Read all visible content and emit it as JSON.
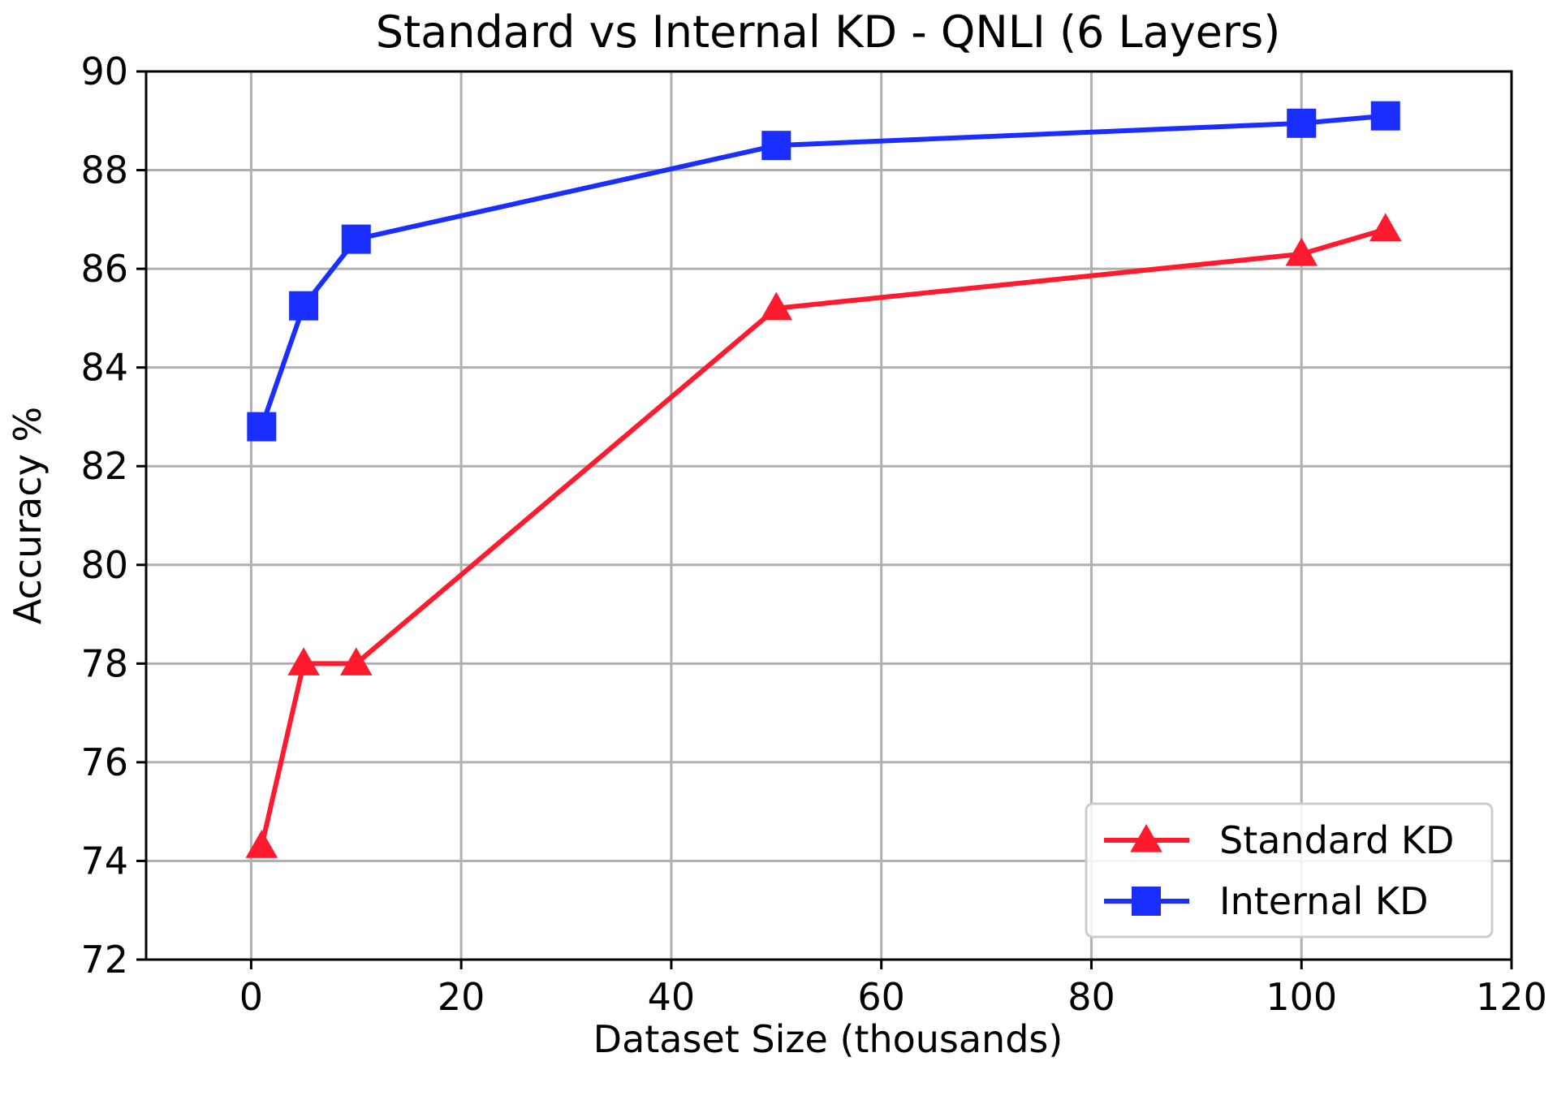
{
  "chart_data": {
    "type": "line",
    "title": "Standard vs Internal KD - QNLI (6 Layers)",
    "xlabel": "Dataset Size (thousands)",
    "ylabel": "Accuracy %",
    "xlim": [
      -10,
      120
    ],
    "ylim": [
      72,
      90
    ],
    "xticks": [
      0,
      20,
      40,
      60,
      80,
      100,
      120
    ],
    "yticks": [
      72,
      74,
      76,
      78,
      80,
      82,
      84,
      86,
      88,
      90
    ],
    "grid": true,
    "legend_position": "lower-right",
    "series": [
      {
        "name": "Standard KD",
        "color": "#ff1a2e",
        "marker": "triangle",
        "x": [
          1,
          5,
          10,
          50,
          100,
          108
        ],
        "y": [
          74.3,
          78.0,
          78.0,
          85.2,
          86.3,
          86.8
        ]
      },
      {
        "name": "Internal KD",
        "color": "#1a2eff",
        "marker": "square",
        "x": [
          1,
          5,
          10,
          50,
          100,
          108
        ],
        "y": [
          82.8,
          85.25,
          86.6,
          88.5,
          88.95,
          89.1
        ]
      }
    ]
  }
}
